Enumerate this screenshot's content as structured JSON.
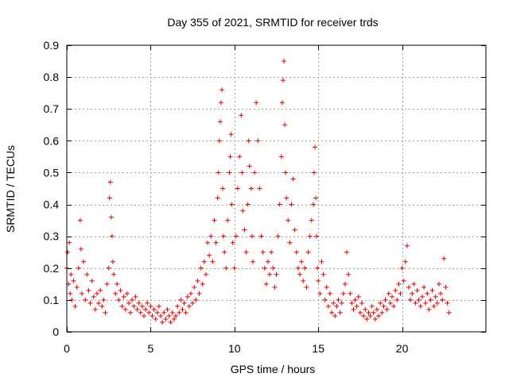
{
  "chart_data": {
    "type": "scatter",
    "title": "Day 355 of 2021, SRMTID for receiver trds",
    "xlabel": "GPS time / hours",
    "ylabel": "SRMTID / TECUs",
    "xlim": [
      0,
      25
    ],
    "ylim": [
      0,
      0.9
    ],
    "xticks": [
      0,
      5,
      10,
      15,
      20
    ],
    "yticks": [
      0,
      0.1,
      0.2,
      0.3,
      0.4,
      0.5,
      0.6,
      0.7,
      0.8,
      0.9
    ],
    "grid": true,
    "marker": "+",
    "color": "#e00000",
    "series": [
      {
        "name": "SRMTID",
        "x": [
          0.0,
          0.05,
          0.1,
          0.15,
          0.2,
          0.25,
          0.3,
          0.4,
          0.5,
          0.6,
          0.7,
          0.8,
          0.85,
          0.9,
          1.0,
          1.1,
          1.2,
          1.3,
          1.4,
          1.5,
          1.6,
          1.7,
          1.8,
          1.9,
          2.0,
          2.1,
          2.2,
          2.3,
          2.4,
          2.5,
          2.55,
          2.6,
          2.65,
          2.7,
          2.75,
          2.8,
          2.9,
          3.0,
          3.1,
          3.2,
          3.3,
          3.4,
          3.5,
          3.6,
          3.7,
          3.8,
          3.9,
          4.0,
          4.1,
          4.2,
          4.3,
          4.4,
          4.5,
          4.6,
          4.7,
          4.8,
          4.9,
          5.0,
          5.1,
          5.2,
          5.3,
          5.4,
          5.5,
          5.6,
          5.7,
          5.8,
          5.9,
          6.0,
          6.1,
          6.2,
          6.3,
          6.4,
          6.5,
          6.6,
          6.7,
          6.8,
          6.9,
          7.0,
          7.1,
          7.2,
          7.3,
          7.4,
          7.5,
          7.6,
          7.7,
          7.8,
          7.9,
          8.0,
          8.1,
          8.2,
          8.3,
          8.4,
          8.5,
          8.6,
          8.7,
          8.8,
          8.9,
          9.0,
          9.05,
          9.1,
          9.15,
          9.2,
          9.25,
          9.3,
          9.35,
          9.4,
          9.5,
          9.6,
          9.7,
          9.75,
          9.8,
          9.85,
          9.9,
          10.0,
          10.1,
          10.2,
          10.3,
          10.4,
          10.45,
          10.5,
          10.6,
          10.7,
          10.8,
          10.85,
          10.9,
          11.0,
          11.05,
          11.1,
          11.2,
          11.3,
          11.4,
          11.5,
          11.6,
          11.7,
          11.8,
          11.9,
          12.0,
          12.1,
          12.2,
          12.3,
          12.4,
          12.5,
          12.6,
          12.7,
          12.8,
          12.85,
          12.9,
          12.95,
          13.0,
          13.05,
          13.1,
          13.2,
          13.3,
          13.4,
          13.5,
          13.6,
          13.7,
          13.8,
          13.9,
          14.0,
          14.1,
          14.2,
          14.3,
          14.4,
          14.5,
          14.6,
          14.7,
          14.75,
          14.8,
          14.85,
          14.9,
          14.95,
          15.0,
          15.1,
          15.2,
          15.3,
          15.4,
          15.5,
          15.6,
          15.7,
          15.8,
          15.9,
          16.0,
          16.1,
          16.2,
          16.3,
          16.4,
          16.5,
          16.6,
          16.7,
          16.8,
          16.9,
          17.0,
          17.1,
          17.2,
          17.3,
          17.4,
          17.5,
          17.6,
          17.7,
          17.8,
          17.9,
          18.0,
          18.1,
          18.2,
          18.3,
          18.4,
          18.5,
          18.6,
          18.7,
          18.8,
          18.9,
          19.0,
          19.1,
          19.2,
          19.3,
          19.4,
          19.5,
          19.6,
          19.7,
          19.8,
          19.9,
          20.0,
          20.1,
          20.2,
          20.3,
          20.4,
          20.5,
          20.6,
          20.7,
          20.8,
          20.9,
          21.0,
          21.1,
          21.2,
          21.3,
          21.4,
          21.5,
          21.6,
          21.7,
          21.8,
          21.9,
          22.0,
          22.1,
          22.2,
          22.3,
          22.4,
          22.5,
          22.6,
          22.7,
          22.8
        ],
        "y": [
          0.2,
          0.25,
          0.15,
          0.28,
          0.12,
          0.18,
          0.1,
          0.16,
          0.08,
          0.14,
          0.2,
          0.35,
          0.26,
          0.12,
          0.22,
          0.1,
          0.18,
          0.13,
          0.09,
          0.16,
          0.11,
          0.07,
          0.12,
          0.09,
          0.13,
          0.08,
          0.1,
          0.06,
          0.15,
          0.2,
          0.42,
          0.47,
          0.36,
          0.3,
          0.22,
          0.18,
          0.12,
          0.15,
          0.1,
          0.13,
          0.08,
          0.11,
          0.07,
          0.12,
          0.09,
          0.06,
          0.1,
          0.08,
          0.11,
          0.07,
          0.09,
          0.06,
          0.08,
          0.05,
          0.07,
          0.09,
          0.06,
          0.08,
          0.05,
          0.07,
          0.04,
          0.06,
          0.08,
          0.05,
          0.03,
          0.06,
          0.04,
          0.07,
          0.05,
          0.03,
          0.06,
          0.04,
          0.05,
          0.08,
          0.06,
          0.1,
          0.07,
          0.09,
          0.06,
          0.11,
          0.08,
          0.12,
          0.09,
          0.14,
          0.1,
          0.16,
          0.12,
          0.2,
          0.15,
          0.22,
          0.18,
          0.28,
          0.24,
          0.3,
          0.22,
          0.35,
          0.28,
          0.42,
          0.5,
          0.6,
          0.66,
          0.72,
          0.76,
          0.45,
          0.3,
          0.25,
          0.2,
          0.35,
          0.5,
          0.55,
          0.62,
          0.4,
          0.28,
          0.2,
          0.3,
          0.45,
          0.55,
          0.68,
          0.5,
          0.38,
          0.32,
          0.25,
          0.4,
          0.6,
          0.52,
          0.45,
          0.3,
          0.22,
          0.5,
          0.72,
          0.6,
          0.45,
          0.3,
          0.25,
          0.2,
          0.15,
          0.22,
          0.18,
          0.25,
          0.2,
          0.14,
          0.18,
          0.3,
          0.4,
          0.55,
          0.72,
          0.79,
          0.85,
          0.65,
          0.5,
          0.42,
          0.35,
          0.28,
          0.4,
          0.48,
          0.32,
          0.25,
          0.2,
          0.18,
          0.22,
          0.16,
          0.2,
          0.14,
          0.25,
          0.3,
          0.35,
          0.4,
          0.5,
          0.58,
          0.42,
          0.3,
          0.2,
          0.16,
          0.12,
          0.22,
          0.18,
          0.1,
          0.14,
          0.08,
          0.12,
          0.06,
          0.09,
          0.05,
          0.08,
          0.1,
          0.06,
          0.09,
          0.12,
          0.15,
          0.25,
          0.18,
          0.12,
          0.09,
          0.07,
          0.1,
          0.08,
          0.11,
          0.06,
          0.09,
          0.05,
          0.07,
          0.04,
          0.06,
          0.05,
          0.08,
          0.06,
          0.04,
          0.07,
          0.05,
          0.09,
          0.06,
          0.08,
          0.1,
          0.07,
          0.12,
          0.09,
          0.11,
          0.08,
          0.13,
          0.1,
          0.15,
          0.12,
          0.2,
          0.16,
          0.22,
          0.27,
          0.14,
          0.1,
          0.12,
          0.15,
          0.09,
          0.13,
          0.1,
          0.08,
          0.11,
          0.14,
          0.09,
          0.12,
          0.07,
          0.1,
          0.13,
          0.08,
          0.11,
          0.09,
          0.15,
          0.12,
          0.1,
          0.23,
          0.14,
          0.09,
          0.06
        ]
      }
    ]
  }
}
